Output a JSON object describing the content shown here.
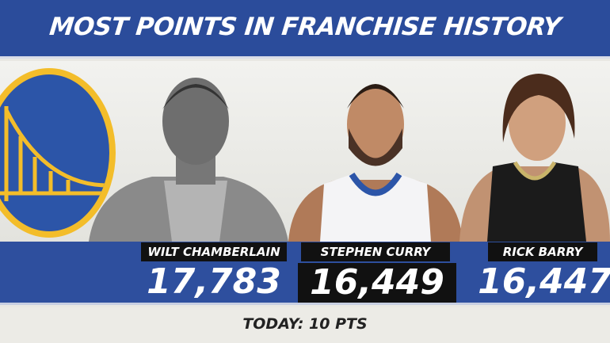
{
  "title": "MOST POINTS IN FRANCHISE HISTORY",
  "colors": {
    "banner": "#2b4c9b",
    "logo_gold": "#f3bd2a",
    "logo_blue": "#2c55a8",
    "label_bg": "#111111"
  },
  "players": [
    {
      "name": "WILT CHAMBERLAIN",
      "points": "17,783"
    },
    {
      "name": "STEPHEN CURRY",
      "points": "16,449"
    },
    {
      "name": "RICK BARRY",
      "points": "16,447"
    }
  ],
  "footer": "TODAY: 10 PTS",
  "logo": "golden-gate-bridge-logo"
}
